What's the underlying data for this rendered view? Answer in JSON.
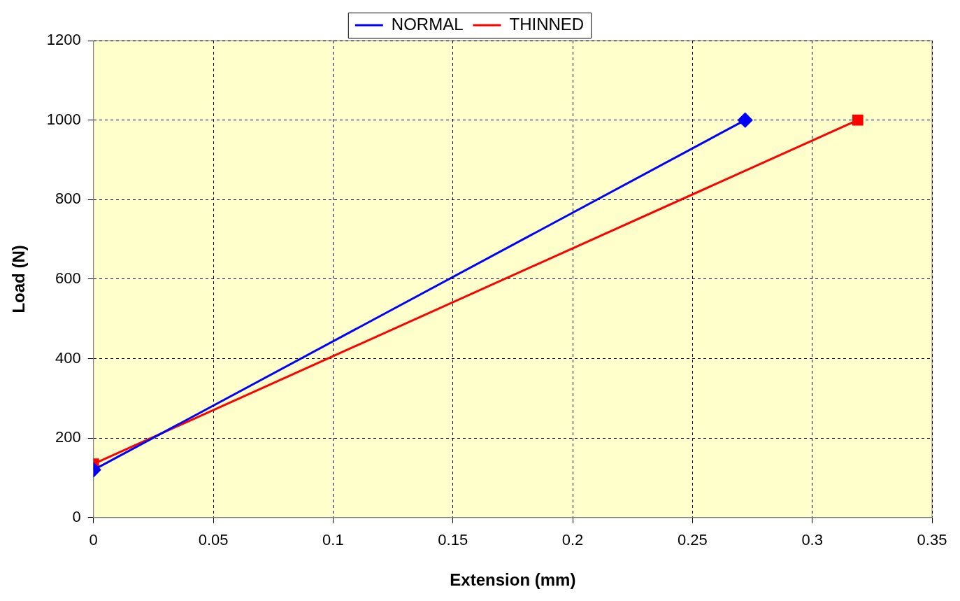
{
  "chart_data": {
    "type": "line",
    "xlabel": "Extension (mm)",
    "ylabel": "Load (N)",
    "series": [
      {
        "name": "NORMAL",
        "color": "#0000ff",
        "marker": "diamond",
        "x": [
          0,
          0.272
        ],
        "values": [
          120,
          1000
        ]
      },
      {
        "name": "THINNED",
        "color": "#ff0000",
        "marker": "square",
        "x": [
          0,
          0.319
        ],
        "values": [
          135,
          1000
        ]
      }
    ],
    "xlim": [
      0,
      0.35
    ],
    "xticks": [
      0,
      0.05,
      0.1,
      0.15,
      0.2,
      0.25,
      0.3,
      0.35
    ],
    "ylim": [
      0,
      1200
    ],
    "yticks": [
      0,
      200,
      400,
      600,
      800,
      1000,
      1200
    ],
    "grid": true,
    "legend": "top",
    "line_style": "solid"
  }
}
